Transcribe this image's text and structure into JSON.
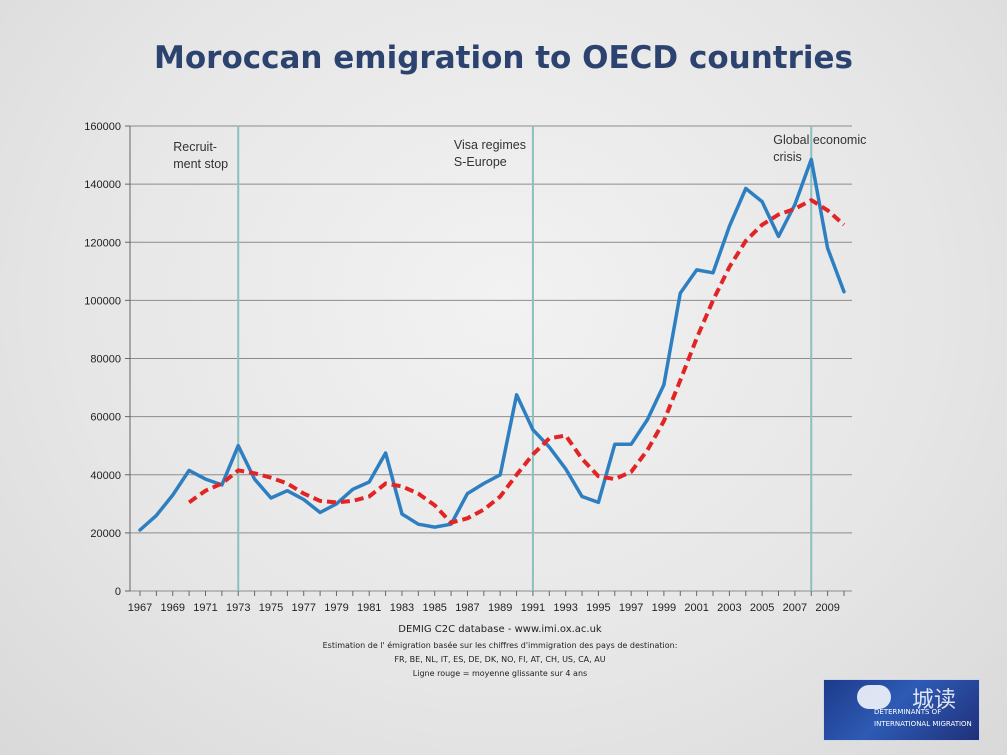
{
  "title": "Moroccan emigration to OECD countries",
  "chart_data": {
    "type": "line",
    "title": "Moroccan emigration to OECD countries",
    "x": [
      1967,
      1968,
      1969,
      1970,
      1971,
      1972,
      1973,
      1974,
      1975,
      1976,
      1977,
      1978,
      1979,
      1980,
      1981,
      1982,
      1983,
      1984,
      1985,
      1986,
      1987,
      1988,
      1989,
      1990,
      1991,
      1992,
      1993,
      1994,
      1995,
      1996,
      1997,
      1998,
      1999,
      2000,
      2001,
      2002,
      2003,
      2004,
      2005,
      2006,
      2007,
      2008,
      2009,
      2010
    ],
    "x_ticks": [
      "1967",
      "1969",
      "1971",
      "1973",
      "1975",
      "1977",
      "1979",
      "1981",
      "1983",
      "1985",
      "1987",
      "1989",
      "1991",
      "1993",
      "1995",
      "1997",
      "1999",
      "2001",
      "2003",
      "2005",
      "2007",
      "2009"
    ],
    "y_ticks": [
      "0",
      "20000",
      "40000",
      "60000",
      "80000",
      "100000",
      "120000",
      "140000",
      "160000"
    ],
    "ylim": [
      0,
      160000
    ],
    "xlabel": "",
    "ylabel": "",
    "grid": "horizontal",
    "series": [
      {
        "color": "#2e7fc1",
        "style": "solid",
        "values": [
          21000,
          26000,
          33000,
          41500,
          38500,
          36500,
          50000,
          38500,
          32000,
          34500,
          31500,
          27000,
          30000,
          35000,
          37500,
          47500,
          26500,
          23000,
          22000,
          23000,
          33500,
          37000,
          40000,
          67500,
          55500,
          49500,
          42000,
          32500,
          30500,
          50500,
          50500,
          59000,
          71000,
          102500,
          110500,
          109500,
          125500,
          138500,
          134000,
          122000,
          133000,
          148500,
          118000,
          103000
        ]
      },
      {
        "color": "#e32424",
        "style": "dashed",
        "values": [
          null,
          null,
          null,
          30500,
          34500,
          37000,
          41500,
          40500,
          39000,
          37000,
          33500,
          31000,
          30500,
          31000,
          32500,
          37000,
          36000,
          33500,
          29500,
          23500,
          25000,
          28000,
          32500,
          40000,
          47000,
          52500,
          53500,
          45500,
          39500,
          38500,
          41000,
          48500,
          58500,
          72500,
          87000,
          100000,
          111500,
          120500,
          126000,
          129500,
          131500,
          134500,
          131000,
          126000
        ]
      }
    ],
    "annotations": [
      {
        "year": 1973,
        "lines": [
          "Recruit-",
          "ment stop"
        ]
      },
      {
        "year": 1991,
        "lines": [
          "Visa regimes",
          "S-Europe"
        ]
      },
      {
        "year": 2008,
        "lines": [
          "Global economic",
          "crisis"
        ]
      }
    ]
  },
  "source": {
    "main": "DEMIG C2C database - www.imi.ox.ac.uk",
    "line2": "Estimation de l' émigration basée sur les chiffres d'immigration des pays de destination:",
    "line3": "FR, BE, NL, IT, ES, DE, DK, NO, FI, AT, CH, US, CA, AU",
    "line4": "Ligne rouge  = moyenne glissante sur 4 ans"
  },
  "logo": {
    "text1": "DETERMINANTS OF",
    "text2": "INTERNATIONAL MIGRATION",
    "watermark": "城读"
  }
}
